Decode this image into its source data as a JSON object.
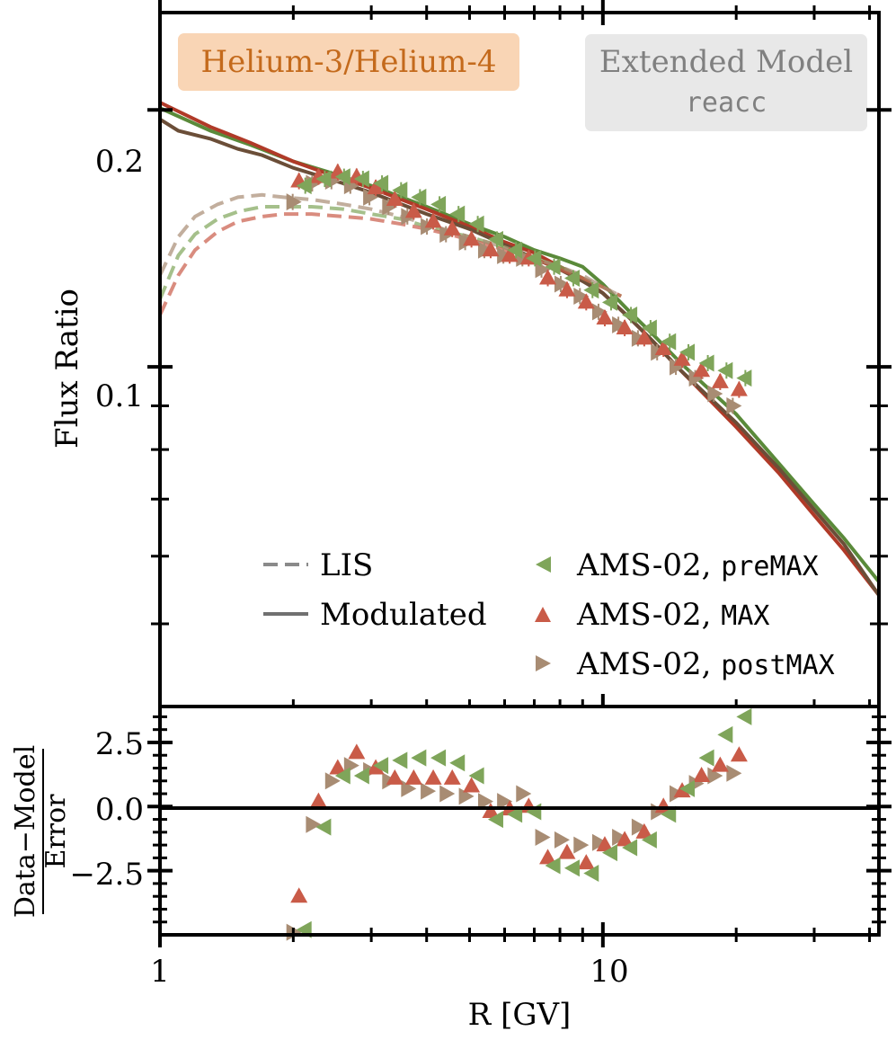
{
  "chart_data": {
    "type": "scatter",
    "title": "",
    "xlabel": "R [GV]",
    "ylabel": "Flux Ratio",
    "residual_ylabel_num": "Data−Model",
    "residual_ylabel_den": "Error",
    "x_scale": "log",
    "y_scale": "log",
    "xlim": [
      1,
      42
    ],
    "ylim": [
      0.04,
      0.26
    ],
    "residual_ylim": [
      -5.0,
      3.9
    ],
    "x_ticks": [
      {
        "value": 1,
        "label": "1"
      },
      {
        "value": 10,
        "label": "10"
      }
    ],
    "y_ticks": [
      {
        "value": 0.1,
        "label": "0.1"
      },
      {
        "value": 0.2,
        "label": "0.2"
      }
    ],
    "residual_ticks": [
      {
        "value": 2.5,
        "label": "2.5"
      },
      {
        "value": 0.0,
        "label": "0.0"
      },
      {
        "value": -2.5,
        "label": "−2.5"
      }
    ],
    "annotations": {
      "species_label": "Helium-3/Helium-4",
      "model_label": "Extended Model",
      "model_sublabel": "reacc"
    },
    "legend": {
      "position": "lower center",
      "line_entries": [
        {
          "label": "LIS",
          "style": "dashed"
        },
        {
          "label": "Modulated",
          "style": "solid"
        }
      ],
      "marker_entries": [
        {
          "label_prefix": "AMS-02, ",
          "label_code": "preMAX",
          "marker": "triangle-left"
        },
        {
          "label_prefix": "AMS-02, ",
          "label_code": "MAX",
          "marker": "triangle-up"
        },
        {
          "label_prefix": "AMS-02, ",
          "label_code": "postMAX",
          "marker": "triangle-right"
        }
      ]
    },
    "colors": {
      "preMAX": "#7fa55a",
      "MAX": "#c95b48",
      "postMAX": "#a88c73",
      "species_box": "#f9d5b5",
      "species_text": "#c46a1c",
      "model_box": "#e8e8e8",
      "model_text": "#808080"
    },
    "x": [
      2.06,
      2.28,
      2.52,
      2.78,
      3.07,
      3.39,
      3.74,
      4.14,
      4.57,
      5.05,
      5.58,
      6.16,
      6.8,
      7.51,
      8.3,
      9.17,
      10.1,
      11.2,
      12.4,
      13.7,
      15.1,
      16.7,
      18.4,
      20.3
    ],
    "series": [
      {
        "name": "AMS-02, preMAX",
        "key": "preMAX",
        "values": [
          0.163,
          0.166,
          0.167,
          0.166,
          0.164,
          0.161,
          0.158,
          0.155,
          0.151,
          0.147,
          0.141,
          0.137,
          0.134,
          0.131,
          0.127,
          0.123,
          0.119,
          0.115,
          0.111,
          0.107,
          0.104,
          0.101,
          0.099,
          0.097
        ],
        "residuals": [
          -4.8,
          -0.8,
          1.2,
          1.2,
          1.6,
          1.8,
          1.9,
          1.9,
          1.7,
          1.2,
          -0.5,
          -0.3,
          -0.2,
          -2.3,
          -2.4,
          -2.6,
          -1.8,
          -1.6,
          -1.3,
          -0.3,
          0.7,
          1.9,
          2.8,
          3.5
        ]
      },
      {
        "name": "AMS-02, MAX",
        "key": "MAX",
        "values": [
          0.165,
          0.167,
          0.169,
          0.167,
          0.162,
          0.157,
          0.152,
          0.148,
          0.145,
          0.141,
          0.137,
          0.135,
          0.134,
          0.127,
          0.123,
          0.119,
          0.114,
          0.111,
          0.108,
          0.105,
          0.102,
          0.099,
          0.096,
          0.094
        ],
        "residuals": [
          -3.5,
          0.2,
          1.5,
          2.1,
          1.5,
          1.1,
          1.1,
          1.1,
          1.1,
          0.8,
          -0.2,
          -0.1,
          0.0,
          -2.0,
          -1.8,
          -2.2,
          -1.5,
          -1.3,
          -1.0,
          0.0,
          0.6,
          1.2,
          1.6,
          2.0
        ]
      },
      {
        "name": "AMS-02, postMAX",
        "key": "postMAX",
        "values": [
          0.156,
          0.164,
          0.165,
          0.163,
          0.158,
          0.154,
          0.15,
          0.146,
          0.143,
          0.14,
          0.137,
          0.135,
          0.134,
          0.13,
          0.125,
          0.121,
          0.116,
          0.112,
          0.108,
          0.104,
          0.1,
          0.097,
          0.093,
          0.09
        ],
        "residuals": [
          -4.9,
          -0.7,
          1.0,
          1.6,
          1.4,
          1.0,
          0.7,
          0.6,
          0.5,
          0.4,
          0.2,
          0.2,
          0.5,
          -1.2,
          -1.3,
          -1.5,
          -1.4,
          -1.2,
          -0.8,
          -0.2,
          0.5,
          0.9,
          1.2,
          1.3
        ]
      }
    ],
    "model_curves": [
      {
        "kind": "LIS",
        "key": "preMAX",
        "x": [
          1.0,
          1.1,
          1.2,
          1.35,
          1.5,
          1.7,
          1.9,
          2.2,
          2.6,
          3.0,
          3.5,
          4.0,
          5.0,
          6.0,
          7.0,
          8.0,
          9.0,
          10.0,
          11.0
        ],
        "y": [
          0.12,
          0.135,
          0.143,
          0.149,
          0.152,
          0.154,
          0.154,
          0.154,
          0.153,
          0.151,
          0.149,
          0.146,
          0.142,
          0.138,
          0.134,
          0.131,
          0.127,
          0.124,
          0.121
        ]
      },
      {
        "kind": "LIS",
        "key": "MAX",
        "x": [
          1.0,
          1.1,
          1.2,
          1.35,
          1.5,
          1.7,
          1.9,
          2.2,
          2.6,
          3.0,
          3.5,
          4.0,
          5.0,
          6.0,
          7.0,
          8.0,
          9.0,
          10.0,
          11.0
        ],
        "y": [
          0.115,
          0.128,
          0.137,
          0.144,
          0.148,
          0.15,
          0.151,
          0.151,
          0.15,
          0.149,
          0.147,
          0.145,
          0.141,
          0.137,
          0.134,
          0.13,
          0.127,
          0.124,
          0.121
        ]
      },
      {
        "kind": "LIS",
        "key": "postMAX",
        "x": [
          1.0,
          1.1,
          1.2,
          1.35,
          1.5,
          1.7,
          1.9,
          2.2,
          2.6,
          3.0,
          3.5,
          4.0,
          5.0,
          6.0,
          7.0,
          8.0,
          9.0,
          10.0,
          11.0
        ],
        "y": [
          0.128,
          0.142,
          0.15,
          0.155,
          0.158,
          0.159,
          0.158,
          0.157,
          0.155,
          0.153,
          0.15,
          0.147,
          0.142,
          0.138,
          0.134,
          0.131,
          0.128,
          0.124,
          0.121
        ]
      },
      {
        "kind": "Modulated",
        "key": "preMAX",
        "x": [
          1.0,
          1.3,
          1.6,
          2.0,
          2.5,
          3.0,
          4.0,
          5.0,
          6.0,
          7.0,
          8.0,
          9.0,
          10.0,
          11.5,
          13.0,
          15.0,
          20.0,
          25.0,
          30.0,
          35.0,
          42.0
        ],
        "y": [
          0.201,
          0.189,
          0.182,
          0.174,
          0.168,
          0.163,
          0.154,
          0.147,
          0.142,
          0.137,
          0.134,
          0.131,
          0.125,
          0.116,
          0.109,
          0.101,
          0.088,
          0.077,
          0.069,
          0.063,
          0.056
        ]
      },
      {
        "kind": "Modulated",
        "key": "MAX",
        "x": [
          1.0,
          1.3,
          1.6,
          2.0,
          2.5,
          3.0,
          4.0,
          5.0,
          6.0,
          7.0,
          8.0,
          9.0,
          10.0,
          11.5,
          13.0,
          15.0,
          20.0,
          25.0,
          30.0,
          35.0,
          42.0
        ],
        "y": [
          0.204,
          0.191,
          0.183,
          0.174,
          0.167,
          0.162,
          0.153,
          0.146,
          0.14,
          0.136,
          0.131,
          0.127,
          0.122,
          0.114,
          0.107,
          0.099,
          0.085,
          0.075,
          0.067,
          0.061,
          0.054
        ]
      },
      {
        "kind": "Modulated",
        "key": "postMAX",
        "x": [
          1.0,
          1.1,
          1.3,
          1.5,
          1.7,
          2.0,
          2.5,
          3.0,
          4.0,
          5.0,
          6.0,
          7.0,
          8.0,
          9.0,
          10.0,
          11.5,
          13.0,
          15.0,
          20.0,
          25.0,
          30.0,
          35.0,
          42.0
        ],
        "y": [
          0.195,
          0.189,
          0.185,
          0.18,
          0.177,
          0.171,
          0.165,
          0.16,
          0.151,
          0.145,
          0.139,
          0.134,
          0.13,
          0.126,
          0.122,
          0.114,
          0.107,
          0.099,
          0.086,
          0.076,
          0.068,
          0.062,
          0.054
        ]
      }
    ]
  }
}
